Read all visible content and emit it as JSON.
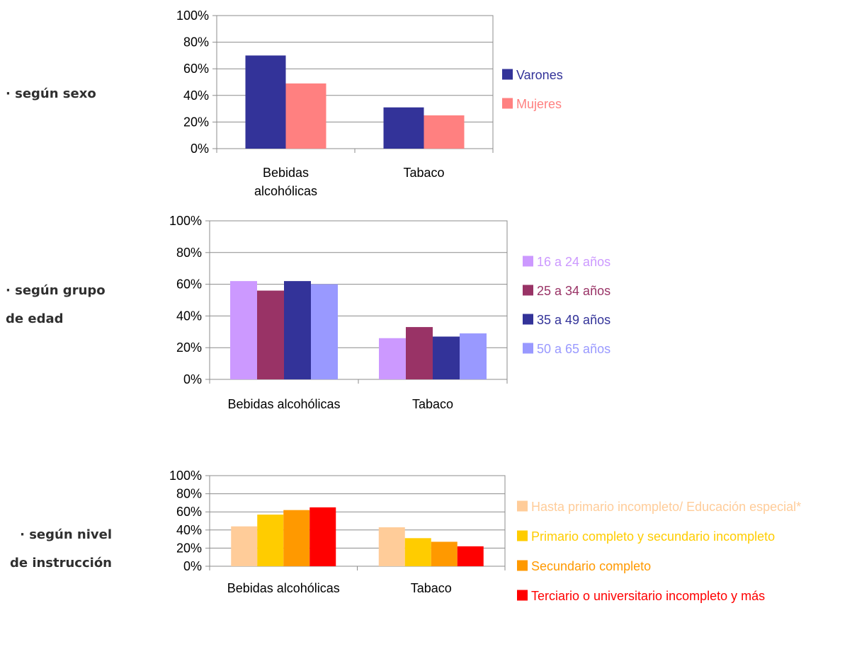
{
  "chart_data": [
    {
      "type": "bar",
      "row_label": [
        "· según sexo"
      ],
      "categories": [
        [
          "Bebidas",
          "alcohólicas"
        ],
        [
          "Tabaco"
        ]
      ],
      "ylim": [
        0,
        100
      ],
      "yticks": [
        "0%",
        "20%",
        "40%",
        "60%",
        "80%",
        "100%"
      ],
      "grid": true,
      "legend_position": "right",
      "series": [
        {
          "name": "Varones",
          "color": "#333399",
          "values": [
            70,
            31
          ]
        },
        {
          "name": "Mujeres",
          "color": "#ff8080",
          "values": [
            49,
            25
          ]
        }
      ]
    },
    {
      "type": "bar",
      "row_label": [
        "· según grupo",
        "de edad"
      ],
      "categories": [
        [
          "Bebidas alcohólicas"
        ],
        [
          "Tabaco"
        ]
      ],
      "ylim": [
        0,
        100
      ],
      "yticks": [
        "0%",
        "20%",
        "40%",
        "60%",
        "80%",
        "100%"
      ],
      "grid": true,
      "legend_position": "right",
      "series": [
        {
          "name": "16 a 24 años",
          "color": "#cc99ff",
          "values": [
            62,
            26
          ]
        },
        {
          "name": "25 a 34 años",
          "color": "#993366",
          "values": [
            56,
            33
          ]
        },
        {
          "name": "35 a 49 años",
          "color": "#333399",
          "values": [
            62,
            27
          ]
        },
        {
          "name": "50 a 65 años",
          "color": "#9999ff",
          "values": [
            60,
            29
          ]
        }
      ]
    },
    {
      "type": "bar",
      "row_label": [
        "· según nivel",
        "de instrucción"
      ],
      "categories": [
        [
          "Bebidas alcohólicas"
        ],
        [
          "Tabaco"
        ]
      ],
      "ylim": [
        0,
        100
      ],
      "yticks": [
        "0%",
        "20%",
        "40%",
        "60%",
        "80%",
        "100%"
      ],
      "grid": true,
      "legend_position": "right",
      "series": [
        {
          "name": "Hasta primario incompleto/ Educación especial*",
          "color": "#ffcc99",
          "values": [
            44,
            43
          ]
        },
        {
          "name": "Primario completo y secundario incompleto",
          "color": "#ffcc00",
          "values": [
            57,
            31
          ]
        },
        {
          "name": "Secundario completo",
          "color": "#ff9900",
          "values": [
            62,
            27
          ]
        },
        {
          "name": "Terciario o universitario incompleto y más",
          "color": "#ff0000",
          "values": [
            65,
            22
          ]
        }
      ]
    }
  ]
}
